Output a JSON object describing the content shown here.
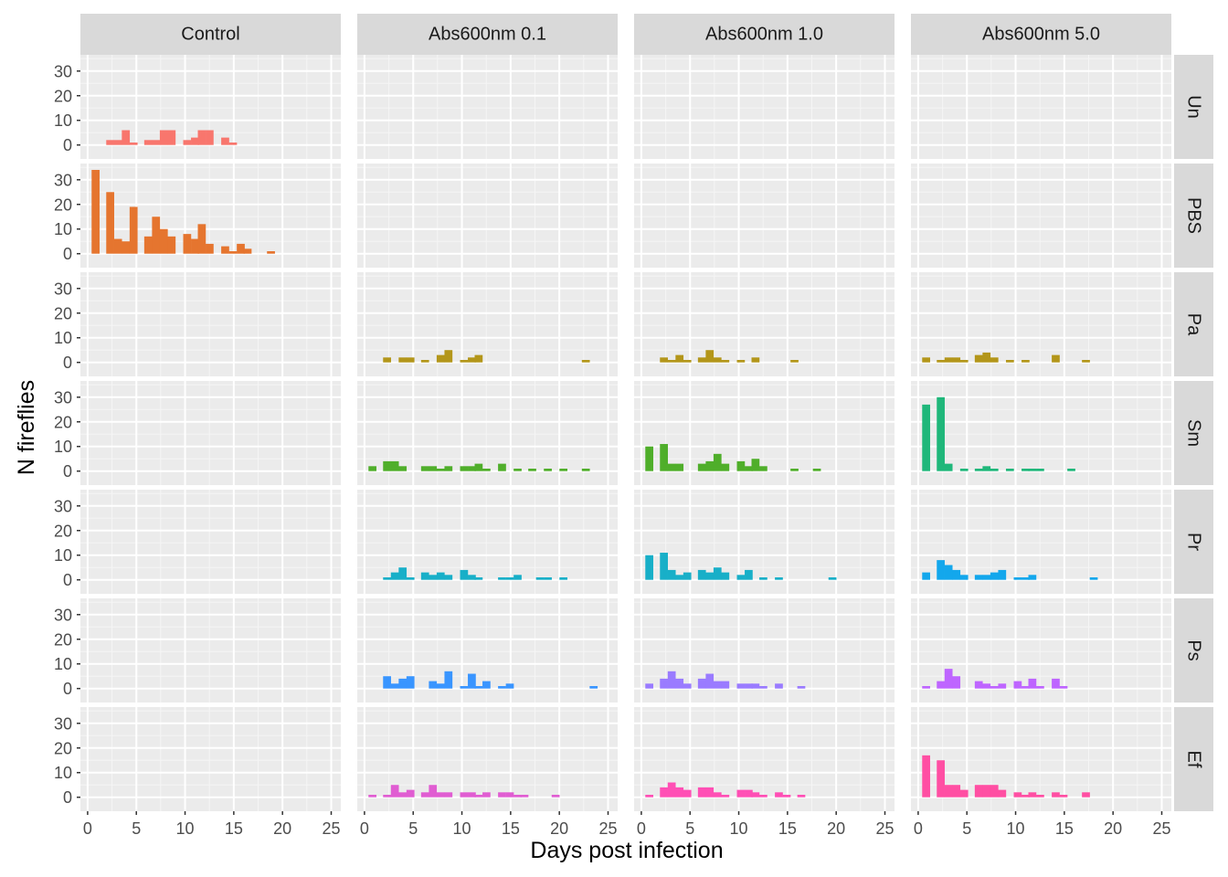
{
  "chart_data": {
    "type": "bar",
    "xlabel": "Days post infection",
    "ylabel": "N fireflies",
    "xlim": [
      0,
      25
    ],
    "ylim": [
      0,
      35
    ],
    "x_ticks": [
      "0",
      "5",
      "10",
      "15",
      "20",
      "25"
    ],
    "y_ticks": [
      "0",
      "10",
      "20",
      "30"
    ],
    "grid": true,
    "legend": "none",
    "bin_width_days": 0.78,
    "columns": [
      "Control",
      "Abs600nm 0.1",
      "Abs600nm 1.0",
      "Abs600nm 5.0"
    ],
    "rows": [
      "Un",
      "PBS",
      "Pa",
      "Sm",
      "Pr",
      "Ps",
      "Ef"
    ],
    "row_colors": [
      "#F8766D",
      "#E5752F",
      "#B3961A",
      "#4FAE2A",
      "#18AFC8",
      "#3995FF",
      "#BE65FF",
      "#FF4FB5"
    ],
    "facets": [
      {
        "row": "Un",
        "col": "Control",
        "color": "#F8766D",
        "bins": [
          [
            2.3,
            2
          ],
          [
            3.1,
            2
          ],
          [
            3.9,
            6
          ],
          [
            4.7,
            1
          ],
          [
            6.2,
            2
          ],
          [
            7.0,
            2
          ],
          [
            7.8,
            6
          ],
          [
            8.6,
            6
          ],
          [
            10.2,
            2
          ],
          [
            11.0,
            3
          ],
          [
            11.7,
            6
          ],
          [
            12.5,
            6
          ],
          [
            14.1,
            3
          ],
          [
            14.9,
            1
          ]
        ]
      },
      {
        "row": "PBS",
        "col": "Control",
        "color": "#E5752F",
        "bins": [
          [
            0.8,
            34
          ],
          [
            2.3,
            25
          ],
          [
            3.1,
            6
          ],
          [
            3.9,
            5
          ],
          [
            4.7,
            19
          ],
          [
            6.2,
            7
          ],
          [
            7.0,
            15
          ],
          [
            7.8,
            10
          ],
          [
            8.6,
            7
          ],
          [
            10.2,
            8
          ],
          [
            11.0,
            6
          ],
          [
            11.7,
            12
          ],
          [
            12.5,
            4
          ],
          [
            14.1,
            3
          ],
          [
            14.9,
            1
          ],
          [
            15.7,
            4
          ],
          [
            16.4,
            2
          ],
          [
            18.8,
            1
          ]
        ]
      },
      {
        "row": "Pa",
        "col": "Abs600nm 0.1",
        "color": "#B3961A",
        "bins": [
          [
            2.3,
            2
          ],
          [
            3.9,
            2
          ],
          [
            4.7,
            2
          ],
          [
            6.2,
            1
          ],
          [
            7.8,
            3
          ],
          [
            8.6,
            5
          ],
          [
            10.2,
            1
          ],
          [
            11.0,
            2
          ],
          [
            11.7,
            3
          ],
          [
            22.7,
            1
          ]
        ]
      },
      {
        "row": "Pa",
        "col": "Abs600nm 1.0",
        "color": "#B3961A",
        "bins": [
          [
            2.3,
            2
          ],
          [
            3.1,
            1
          ],
          [
            3.9,
            3
          ],
          [
            4.7,
            1
          ],
          [
            6.2,
            2
          ],
          [
            7.0,
            5
          ],
          [
            7.8,
            2
          ],
          [
            8.6,
            1
          ],
          [
            10.2,
            1
          ],
          [
            11.7,
            2
          ],
          [
            15.7,
            1
          ]
        ]
      },
      {
        "row": "Pa",
        "col": "Abs600nm 5.0",
        "color": "#B3961A",
        "bins": [
          [
            0.8,
            2
          ],
          [
            2.3,
            1
          ],
          [
            3.1,
            2
          ],
          [
            3.9,
            2
          ],
          [
            4.7,
            1
          ],
          [
            6.2,
            3
          ],
          [
            7.0,
            4
          ],
          [
            7.8,
            2
          ],
          [
            9.4,
            1
          ],
          [
            11.0,
            1
          ],
          [
            14.1,
            3
          ],
          [
            17.2,
            1
          ]
        ]
      },
      {
        "row": "Sm",
        "col": "Abs600nm 0.1",
        "color": "#4FAE2A",
        "bins": [
          [
            0.8,
            2
          ],
          [
            2.3,
            4
          ],
          [
            3.1,
            4
          ],
          [
            3.9,
            2
          ],
          [
            6.2,
            2
          ],
          [
            7.0,
            2
          ],
          [
            7.8,
            1
          ],
          [
            8.6,
            2
          ],
          [
            10.2,
            2
          ],
          [
            11.0,
            2
          ],
          [
            11.7,
            3
          ],
          [
            12.5,
            1
          ],
          [
            14.1,
            3
          ],
          [
            15.7,
            1
          ],
          [
            17.2,
            1
          ],
          [
            18.8,
            1
          ],
          [
            20.4,
            1
          ],
          [
            22.7,
            1
          ]
        ]
      },
      {
        "row": "Sm",
        "col": "Abs600nm 1.0",
        "color": "#4FAE2A",
        "bins": [
          [
            0.8,
            10
          ],
          [
            2.3,
            11
          ],
          [
            3.1,
            3
          ],
          [
            3.9,
            3
          ],
          [
            6.2,
            3
          ],
          [
            7.0,
            4
          ],
          [
            7.8,
            7
          ],
          [
            8.6,
            3
          ],
          [
            10.2,
            4
          ],
          [
            11.0,
            2
          ],
          [
            11.7,
            5
          ],
          [
            12.5,
            2
          ],
          [
            15.7,
            1
          ],
          [
            18.0,
            1
          ]
        ]
      },
      {
        "row": "Sm",
        "col": "Abs600nm 5.0",
        "color": "#1FB77A",
        "bins": [
          [
            0.8,
            27
          ],
          [
            2.3,
            30
          ],
          [
            3.1,
            3
          ],
          [
            4.7,
            1
          ],
          [
            6.2,
            1
          ],
          [
            7.0,
            2
          ],
          [
            7.8,
            1
          ],
          [
            9.4,
            1
          ],
          [
            11.0,
            1
          ],
          [
            11.7,
            1
          ],
          [
            12.5,
            1
          ],
          [
            15.7,
            1
          ]
        ]
      },
      {
        "row": "Pr",
        "col": "Abs600nm 0.1",
        "color": "#18AFC8",
        "bins": [
          [
            2.3,
            1
          ],
          [
            3.1,
            3
          ],
          [
            3.9,
            5
          ],
          [
            4.7,
            1
          ],
          [
            6.2,
            3
          ],
          [
            7.0,
            2
          ],
          [
            7.8,
            3
          ],
          [
            8.6,
            2
          ],
          [
            10.2,
            4
          ],
          [
            11.0,
            2
          ],
          [
            11.7,
            1
          ],
          [
            14.1,
            1
          ],
          [
            14.9,
            1
          ],
          [
            15.7,
            2
          ],
          [
            18.0,
            1
          ],
          [
            18.8,
            1
          ],
          [
            20.4,
            1
          ]
        ]
      },
      {
        "row": "Pr",
        "col": "Abs600nm 1.0",
        "color": "#18AFC8",
        "bins": [
          [
            0.8,
            10
          ],
          [
            2.3,
            11
          ],
          [
            3.1,
            4
          ],
          [
            3.9,
            2
          ],
          [
            4.7,
            3
          ],
          [
            6.2,
            4
          ],
          [
            7.0,
            3
          ],
          [
            7.8,
            5
          ],
          [
            8.6,
            3
          ],
          [
            10.2,
            2
          ],
          [
            11.0,
            4
          ],
          [
            12.5,
            1
          ],
          [
            14.1,
            1
          ],
          [
            19.6,
            1
          ]
        ]
      },
      {
        "row": "Pr",
        "col": "Abs600nm 5.0",
        "color": "#13A7EC",
        "bins": [
          [
            0.8,
            3
          ],
          [
            2.3,
            8
          ],
          [
            3.1,
            6
          ],
          [
            3.9,
            4
          ],
          [
            4.7,
            2
          ],
          [
            6.2,
            2
          ],
          [
            7.0,
            2
          ],
          [
            7.8,
            3
          ],
          [
            8.6,
            4
          ],
          [
            10.2,
            1
          ],
          [
            11.0,
            1
          ],
          [
            11.7,
            2
          ],
          [
            18.0,
            1
          ]
        ]
      },
      {
        "row": "Ps",
        "col": "Abs600nm 0.1",
        "color": "#3995FF",
        "bins": [
          [
            2.3,
            5
          ],
          [
            3.1,
            2
          ],
          [
            3.9,
            4
          ],
          [
            4.7,
            5
          ],
          [
            7.0,
            3
          ],
          [
            7.8,
            2
          ],
          [
            8.6,
            7
          ],
          [
            10.2,
            1
          ],
          [
            11.0,
            6
          ],
          [
            11.7,
            1
          ],
          [
            12.5,
            3
          ],
          [
            14.1,
            1
          ],
          [
            14.9,
            2
          ],
          [
            23.5,
            1
          ]
        ]
      },
      {
        "row": "Ps",
        "col": "Abs600nm 1.0",
        "color": "#9A7BFF",
        "bins": [
          [
            0.8,
            2
          ],
          [
            2.3,
            4
          ],
          [
            3.1,
            7
          ],
          [
            3.9,
            4
          ],
          [
            4.7,
            2
          ],
          [
            6.2,
            4
          ],
          [
            7.0,
            6
          ],
          [
            7.8,
            3
          ],
          [
            8.6,
            3
          ],
          [
            10.2,
            2
          ],
          [
            11.0,
            2
          ],
          [
            11.7,
            2
          ],
          [
            12.5,
            1
          ],
          [
            14.1,
            2
          ],
          [
            16.4,
            1
          ]
        ]
      },
      {
        "row": "Ps",
        "col": "Abs600nm 5.0",
        "color": "#BE65FF",
        "bins": [
          [
            0.8,
            1
          ],
          [
            2.3,
            3
          ],
          [
            3.1,
            8
          ],
          [
            3.9,
            5
          ],
          [
            6.2,
            3
          ],
          [
            7.0,
            2
          ],
          [
            7.8,
            1
          ],
          [
            8.6,
            2
          ],
          [
            10.2,
            3
          ],
          [
            11.0,
            1
          ],
          [
            11.7,
            4
          ],
          [
            12.5,
            1
          ],
          [
            14.1,
            4
          ],
          [
            14.9,
            1
          ]
        ]
      },
      {
        "row": "Ef",
        "col": "Abs600nm 0.1",
        "color": "#E05DD2",
        "bins": [
          [
            0.8,
            1
          ],
          [
            2.3,
            1
          ],
          [
            3.1,
            5
          ],
          [
            3.9,
            2
          ],
          [
            4.7,
            3
          ],
          [
            6.2,
            2
          ],
          [
            7.0,
            5
          ],
          [
            7.8,
            2
          ],
          [
            8.6,
            2
          ],
          [
            10.2,
            2
          ],
          [
            11.0,
            2
          ],
          [
            11.7,
            1
          ],
          [
            12.5,
            2
          ],
          [
            14.1,
            2
          ],
          [
            14.9,
            2
          ],
          [
            15.7,
            1
          ],
          [
            16.4,
            1
          ],
          [
            19.6,
            1
          ]
        ]
      },
      {
        "row": "Ef",
        "col": "Abs600nm 1.0",
        "color": "#FF4FB5",
        "bins": [
          [
            0.8,
            1
          ],
          [
            2.3,
            4
          ],
          [
            3.1,
            6
          ],
          [
            3.9,
            4
          ],
          [
            4.7,
            3
          ],
          [
            6.2,
            4
          ],
          [
            7.0,
            4
          ],
          [
            7.8,
            2
          ],
          [
            8.6,
            1
          ],
          [
            10.2,
            3
          ],
          [
            11.0,
            3
          ],
          [
            11.7,
            2
          ],
          [
            12.5,
            1
          ],
          [
            14.1,
            2
          ],
          [
            14.9,
            1
          ],
          [
            16.4,
            1
          ]
        ]
      },
      {
        "row": "Ef",
        "col": "Abs600nm 5.0",
        "color": "#FF4FA3",
        "bins": [
          [
            0.8,
            17
          ],
          [
            2.3,
            15
          ],
          [
            3.1,
            5
          ],
          [
            3.9,
            5
          ],
          [
            4.7,
            3
          ],
          [
            6.2,
            5
          ],
          [
            7.0,
            5
          ],
          [
            7.8,
            5
          ],
          [
            8.6,
            3
          ],
          [
            10.2,
            2
          ],
          [
            11.0,
            1
          ],
          [
            11.7,
            2
          ],
          [
            12.5,
            1
          ],
          [
            14.1,
            2
          ],
          [
            14.9,
            1
          ],
          [
            17.2,
            2
          ]
        ]
      }
    ]
  }
}
